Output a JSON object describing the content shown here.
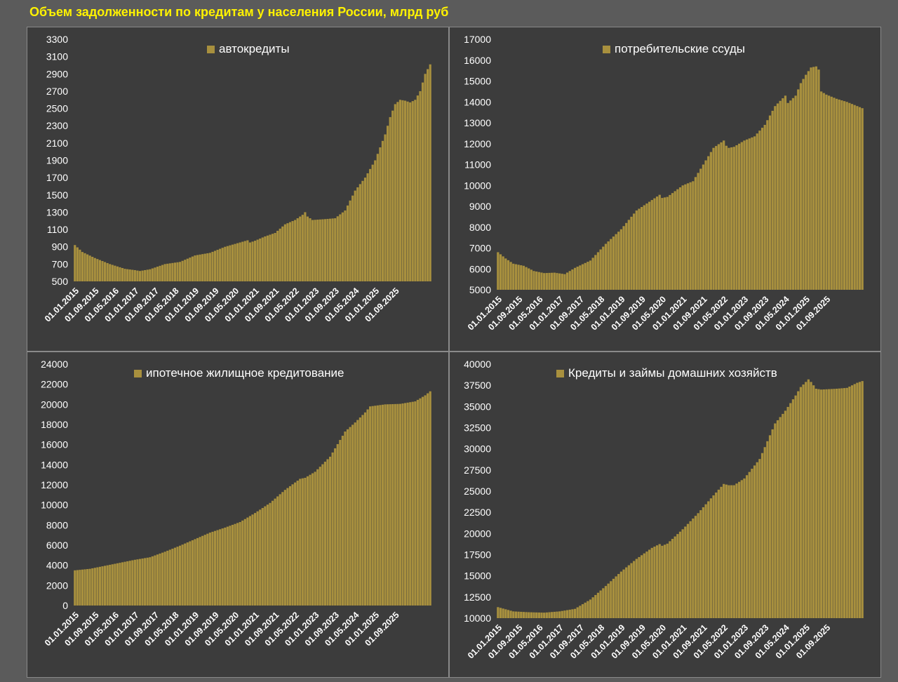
{
  "title": "Объем задолженности по кредитам у населения России, млрд руб",
  "colors": {
    "bar": "#a8903e",
    "bar_stroke": "#c6ab52",
    "panel_bg": "#3c3c3c",
    "page_bg": "#5b5b5b",
    "title": "#fff200"
  },
  "chart_data": [
    {
      "type": "bar",
      "legend": "автокредиты",
      "yticks": [
        500,
        700,
        900,
        1100,
        1300,
        1500,
        1700,
        1900,
        2100,
        2300,
        2500,
        2700,
        2900,
        3100,
        3300
      ],
      "ylim": [
        500,
        3300
      ],
      "xticks": [
        "01.01.2015",
        "01.09.2015",
        "01.05.2016",
        "01.01.2017",
        "01.09.2017",
        "01.05.2018",
        "01.01.2019",
        "01.09.2019",
        "01.05.2020",
        "01.01.2021",
        "01.09.2021",
        "01.05.2022",
        "01.01.2023",
        "01.09.2023",
        "01.05.2024",
        "01.01.2025",
        "01.09.2025"
      ],
      "monthly_start": "01.01.2015",
      "keypoints": [
        [
          0,
          920
        ],
        [
          3,
          840
        ],
        [
          8,
          770
        ],
        [
          14,
          700
        ],
        [
          20,
          645
        ],
        [
          24,
          630
        ],
        [
          26,
          620
        ],
        [
          30,
          640
        ],
        [
          36,
          700
        ],
        [
          42,
          725
        ],
        [
          48,
          800
        ],
        [
          54,
          830
        ],
        [
          60,
          900
        ],
        [
          66,
          950
        ],
        [
          69,
          975
        ],
        [
          70,
          950
        ],
        [
          72,
          970
        ],
        [
          76,
          1020
        ],
        [
          80,
          1060
        ],
        [
          84,
          1160
        ],
        [
          88,
          1210
        ],
        [
          91,
          1270
        ],
        [
          92,
          1300
        ],
        [
          93,
          1250
        ],
        [
          95,
          1210
        ],
        [
          100,
          1220
        ],
        [
          104,
          1230
        ],
        [
          108,
          1320
        ],
        [
          112,
          1550
        ],
        [
          116,
          1700
        ],
        [
          120,
          1900
        ],
        [
          124,
          2200
        ],
        [
          126,
          2400
        ],
        [
          128,
          2550
        ],
        [
          130,
          2600
        ],
        [
          132,
          2590
        ],
        [
          134,
          2570
        ],
        [
          136,
          2600
        ],
        [
          138,
          2700
        ],
        [
          140,
          2900
        ],
        [
          142,
          3010
        ]
      ]
    },
    {
      "type": "bar",
      "legend": "потребительские ссуды",
      "yticks": [
        5000,
        6000,
        7000,
        8000,
        9000,
        10000,
        11000,
        12000,
        13000,
        14000,
        15000,
        16000,
        17000
      ],
      "ylim": [
        5000,
        17000
      ],
      "xticks": [
        "01.01.2015",
        "01.09.2015",
        "01.05.2016",
        "01.01.2017",
        "01.09.2017",
        "01.05.2018",
        "01.01.2019",
        "01.09.2019",
        "01.05.2020",
        "01.01.2021",
        "01.09.2021",
        "01.05.2022",
        "01.01.2023",
        "01.09.2023",
        "01.05.2024",
        "01.01.2025",
        "01.09.2025"
      ],
      "monthly_start": "01.01.2015",
      "keypoints": [
        [
          0,
          6800
        ],
        [
          3,
          6500
        ],
        [
          6,
          6250
        ],
        [
          10,
          6150
        ],
        [
          14,
          5900
        ],
        [
          18,
          5800
        ],
        [
          22,
          5820
        ],
        [
          26,
          5750
        ],
        [
          30,
          6050
        ],
        [
          36,
          6400
        ],
        [
          42,
          7200
        ],
        [
          48,
          7900
        ],
        [
          54,
          8800
        ],
        [
          60,
          9300
        ],
        [
          63,
          9550
        ],
        [
          64,
          9400
        ],
        [
          66,
          9450
        ],
        [
          72,
          10000
        ],
        [
          76,
          10200
        ],
        [
          80,
          11000
        ],
        [
          84,
          11800
        ],
        [
          88,
          12150
        ],
        [
          89,
          11900
        ],
        [
          90,
          11800
        ],
        [
          92,
          11850
        ],
        [
          96,
          12150
        ],
        [
          100,
          12350
        ],
        [
          104,
          12900
        ],
        [
          108,
          13800
        ],
        [
          112,
          14300
        ],
        [
          113,
          13950
        ],
        [
          116,
          14300
        ],
        [
          118,
          14900
        ],
        [
          120,
          15300
        ],
        [
          122,
          15650
        ],
        [
          124,
          15700
        ],
        [
          125,
          15550
        ],
        [
          126,
          14500
        ],
        [
          128,
          14350
        ],
        [
          132,
          14150
        ],
        [
          136,
          14000
        ],
        [
          140,
          13800
        ],
        [
          142,
          13700
        ]
      ]
    },
    {
      "type": "bar",
      "legend": "ипотечное жилищное кредитование",
      "yticks": [
        0,
        2000,
        4000,
        6000,
        8000,
        10000,
        12000,
        14000,
        16000,
        18000,
        20000,
        22000,
        24000
      ],
      "ylim": [
        0,
        24000
      ],
      "xticks": [
        "01.01.2015",
        "01.09.2015",
        "01.05.2016",
        "01.01.2017",
        "01.09.2017",
        "01.05.2018",
        "01.01.2019",
        "01.09.2019",
        "01.05.2020",
        "01.01.2021",
        "01.09.2021",
        "01.05.2022",
        "01.01.2023",
        "01.09.2023",
        "01.05.2024",
        "01.01.2025",
        "01.09.2025"
      ],
      "monthly_start": "01.01.2015",
      "keypoints": [
        [
          0,
          3500
        ],
        [
          6,
          3650
        ],
        [
          12,
          3950
        ],
        [
          18,
          4250
        ],
        [
          24,
          4550
        ],
        [
          30,
          4800
        ],
        [
          36,
          5350
        ],
        [
          42,
          5950
        ],
        [
          48,
          6600
        ],
        [
          54,
          7250
        ],
        [
          60,
          7750
        ],
        [
          66,
          8300
        ],
        [
          72,
          9200
        ],
        [
          78,
          10200
        ],
        [
          84,
          11500
        ],
        [
          90,
          12600
        ],
        [
          92,
          12700
        ],
        [
          96,
          13300
        ],
        [
          102,
          14800
        ],
        [
          108,
          17300
        ],
        [
          112,
          18200
        ],
        [
          116,
          19200
        ],
        [
          118,
          19800
        ],
        [
          124,
          20000
        ],
        [
          130,
          20050
        ],
        [
          136,
          20300
        ],
        [
          140,
          20900
        ],
        [
          142,
          21300
        ]
      ]
    },
    {
      "type": "bar",
      "legend": "Кредиты и займы домашних хозяйств",
      "yticks": [
        10000,
        12500,
        15000,
        17500,
        20000,
        22500,
        25000,
        27500,
        30000,
        32500,
        35000,
        37500,
        40000
      ],
      "ylim": [
        10000,
        40000
      ],
      "xticks": [
        "01.01.2015",
        "01.09.2015",
        "01.05.2016",
        "01.01.2017",
        "01.09.2017",
        "01.05.2018",
        "01.01.2019",
        "01.09.2019",
        "01.05.2020",
        "01.01.2021",
        "01.09.2021",
        "01.05.2022",
        "01.01.2023",
        "01.09.2023",
        "01.05.2024",
        "01.01.2025",
        "01.09.2025"
      ],
      "monthly_start": "01.01.2015",
      "keypoints": [
        [
          0,
          11300
        ],
        [
          6,
          10800
        ],
        [
          12,
          10700
        ],
        [
          18,
          10650
        ],
        [
          24,
          10800
        ],
        [
          30,
          11100
        ],
        [
          36,
          12200
        ],
        [
          42,
          13800
        ],
        [
          48,
          15500
        ],
        [
          54,
          17000
        ],
        [
          60,
          18300
        ],
        [
          63,
          18750
        ],
        [
          64,
          18550
        ],
        [
          66,
          18800
        ],
        [
          72,
          20500
        ],
        [
          78,
          22400
        ],
        [
          84,
          24500
        ],
        [
          88,
          25850
        ],
        [
          90,
          25700
        ],
        [
          92,
          25700
        ],
        [
          96,
          26500
        ],
        [
          102,
          28800
        ],
        [
          108,
          33000
        ],
        [
          112,
          34500
        ],
        [
          116,
          36300
        ],
        [
          118,
          37300
        ],
        [
          121,
          38200
        ],
        [
          122,
          37900
        ],
        [
          124,
          37100
        ],
        [
          126,
          37000
        ],
        [
          132,
          37100
        ],
        [
          136,
          37200
        ],
        [
          140,
          37800
        ],
        [
          142,
          38000
        ]
      ]
    }
  ]
}
